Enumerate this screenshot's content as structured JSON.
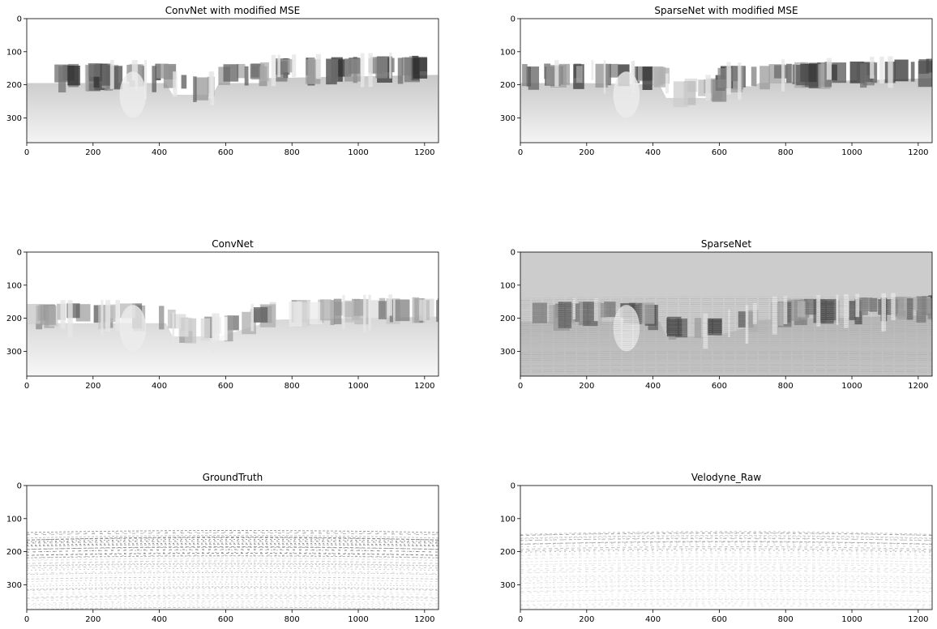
{
  "chart_data": [
    {
      "type": "heatmap",
      "title": "ConvNet with modified MSE",
      "xlim": [
        0,
        1242
      ],
      "ylim": [
        375,
        0
      ],
      "xticks": [
        "0",
        "200",
        "400",
        "600",
        "800",
        "1000",
        "1200"
      ],
      "yticks": [
        "0",
        "100",
        "200",
        "300"
      ],
      "colormap": "gray",
      "background": "#ffffff",
      "style": "dense",
      "skyline": [
        [
          0,
          135
        ],
        [
          200,
          135
        ],
        [
          420,
          135
        ],
        [
          440,
          170
        ],
        [
          560,
          170
        ],
        [
          580,
          135
        ],
        [
          700,
          135
        ],
        [
          720,
          120
        ],
        [
          1242,
          110
        ]
      ]
    },
    {
      "type": "heatmap",
      "title": "SparseNet with modified MSE",
      "xlim": [
        0,
        1242
      ],
      "ylim": [
        375,
        0
      ],
      "xticks": [
        "0",
        "200",
        "400",
        "600",
        "800",
        "1000",
        "1200"
      ],
      "yticks": [
        "0",
        "100",
        "200",
        "300"
      ],
      "colormap": "gray",
      "background": "#ffffff",
      "style": "dense",
      "skyline": [
        [
          0,
          135
        ],
        [
          200,
          135
        ],
        [
          420,
          140
        ],
        [
          440,
          180
        ],
        [
          580,
          180
        ],
        [
          600,
          140
        ],
        [
          700,
          145
        ],
        [
          720,
          135
        ],
        [
          1242,
          120
        ]
      ]
    },
    {
      "type": "heatmap",
      "title": "ConvNet",
      "xlim": [
        0,
        1242
      ],
      "ylim": [
        375,
        0
      ],
      "xticks": [
        "0",
        "200",
        "400",
        "600",
        "800",
        "1000",
        "1200"
      ],
      "yticks": [
        "0",
        "100",
        "200",
        "300"
      ],
      "colormap": "gray",
      "background": "#ffffff",
      "style": "soft",
      "skyline": [
        [
          0,
          155
        ],
        [
          420,
          155
        ],
        [
          440,
          195
        ],
        [
          580,
          195
        ],
        [
          700,
          160
        ],
        [
          720,
          145
        ],
        [
          1242,
          135
        ]
      ]
    },
    {
      "type": "heatmap",
      "title": "SparseNet",
      "xlim": [
        0,
        1242
      ],
      "ylim": [
        375,
        0
      ],
      "xticks": [
        "0",
        "200",
        "400",
        "600",
        "800",
        "1000",
        "1200"
      ],
      "yticks": [
        "0",
        "100",
        "200",
        "300"
      ],
      "colormap": "gray",
      "background": "#cccccc",
      "style": "flat",
      "skyline": [
        [
          0,
          150
        ],
        [
          420,
          150
        ],
        [
          440,
          195
        ],
        [
          580,
          195
        ],
        [
          700,
          165
        ],
        [
          720,
          145
        ],
        [
          1242,
          130
        ]
      ]
    },
    {
      "type": "heatmap",
      "title": "GroundTruth",
      "xlim": [
        0,
        1242
      ],
      "ylim": [
        375,
        0
      ],
      "xticks": [
        "0",
        "200",
        "400",
        "600",
        "800",
        "1000",
        "1200"
      ],
      "yticks": [
        "0",
        "100",
        "200",
        "300"
      ],
      "colormap": "gray",
      "background": "#ffffff",
      "style": "sparse",
      "skyline": [
        [
          0,
          150
        ],
        [
          720,
          150
        ],
        [
          740,
          140
        ],
        [
          1242,
          140
        ]
      ]
    },
    {
      "type": "heatmap",
      "title": "Velodyne_Raw",
      "xlim": [
        0,
        1242
      ],
      "ylim": [
        375,
        0
      ],
      "xticks": [
        "0",
        "200",
        "400",
        "600",
        "800",
        "1000",
        "1200"
      ],
      "yticks": [
        "0",
        "100",
        "200",
        "300"
      ],
      "colormap": "gray",
      "background": "#ffffff",
      "style": "faint",
      "skyline": [
        [
          0,
          150
        ],
        [
          720,
          150
        ],
        [
          740,
          140
        ],
        [
          1242,
          135
        ]
      ]
    }
  ]
}
